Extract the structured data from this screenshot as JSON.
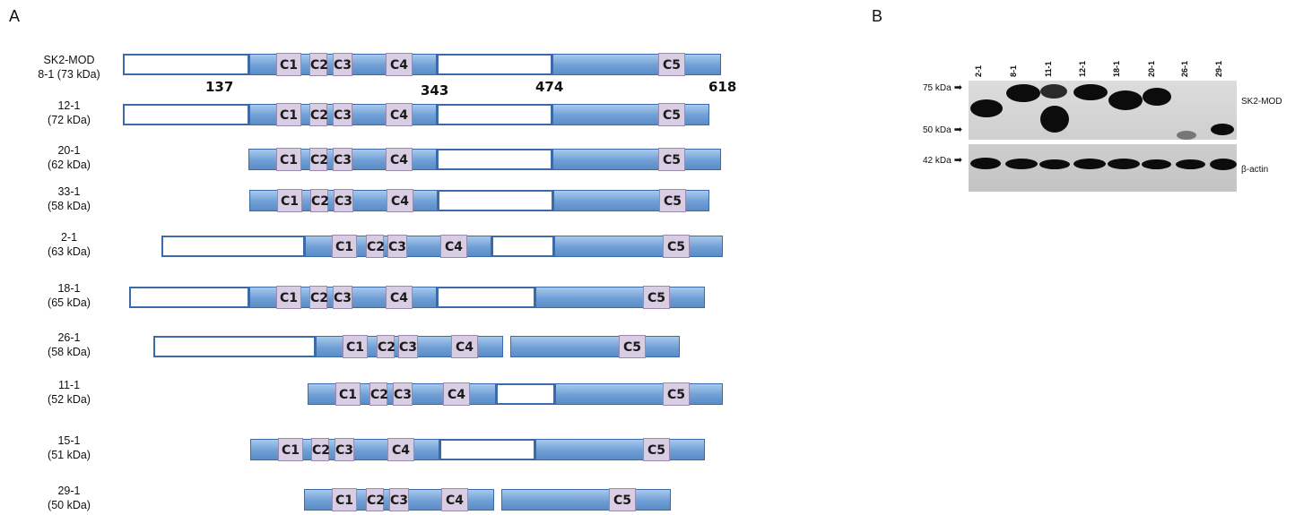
{
  "panels": {
    "a": "A",
    "b": "B"
  },
  "constructs": [
    {
      "name": "SK2-MOD",
      "mass": "8-1 (73 kDa)",
      "y": 0
    },
    {
      "name": "12-1",
      "mass": "(72 kDa)"
    },
    {
      "name": "20-1",
      "mass": "(62 kDa)"
    },
    {
      "name": "33-1",
      "mass": "(58 kDa)"
    },
    {
      "name": "2-1",
      "mass": "(63 kDa)"
    },
    {
      "name": "18-1",
      "mass": "(65 kDa)"
    },
    {
      "name": "26-1",
      "mass": "(58 kDa)"
    },
    {
      "name": "11-1",
      "mass": "(52 kDa)"
    },
    {
      "name": "15-1",
      "mass": "(51 kDa)"
    },
    {
      "name": "29-1",
      "mass": "(50 kDa)"
    }
  ],
  "domain_labels": [
    "C1",
    "C2",
    "C3",
    "C4",
    "C5"
  ],
  "coordinates": [
    "137",
    "343",
    "474",
    "618"
  ],
  "blot": {
    "lanes": [
      "2-1",
      "8-1",
      "11-1",
      "12-1",
      "18-1",
      "20-1",
      "26-1",
      "29-1"
    ],
    "markers": [
      "75 kDa",
      "50 kDa",
      "42 kDa"
    ],
    "labels": {
      "top": "SK2-MOD",
      "bottom": "β-actin"
    }
  }
}
